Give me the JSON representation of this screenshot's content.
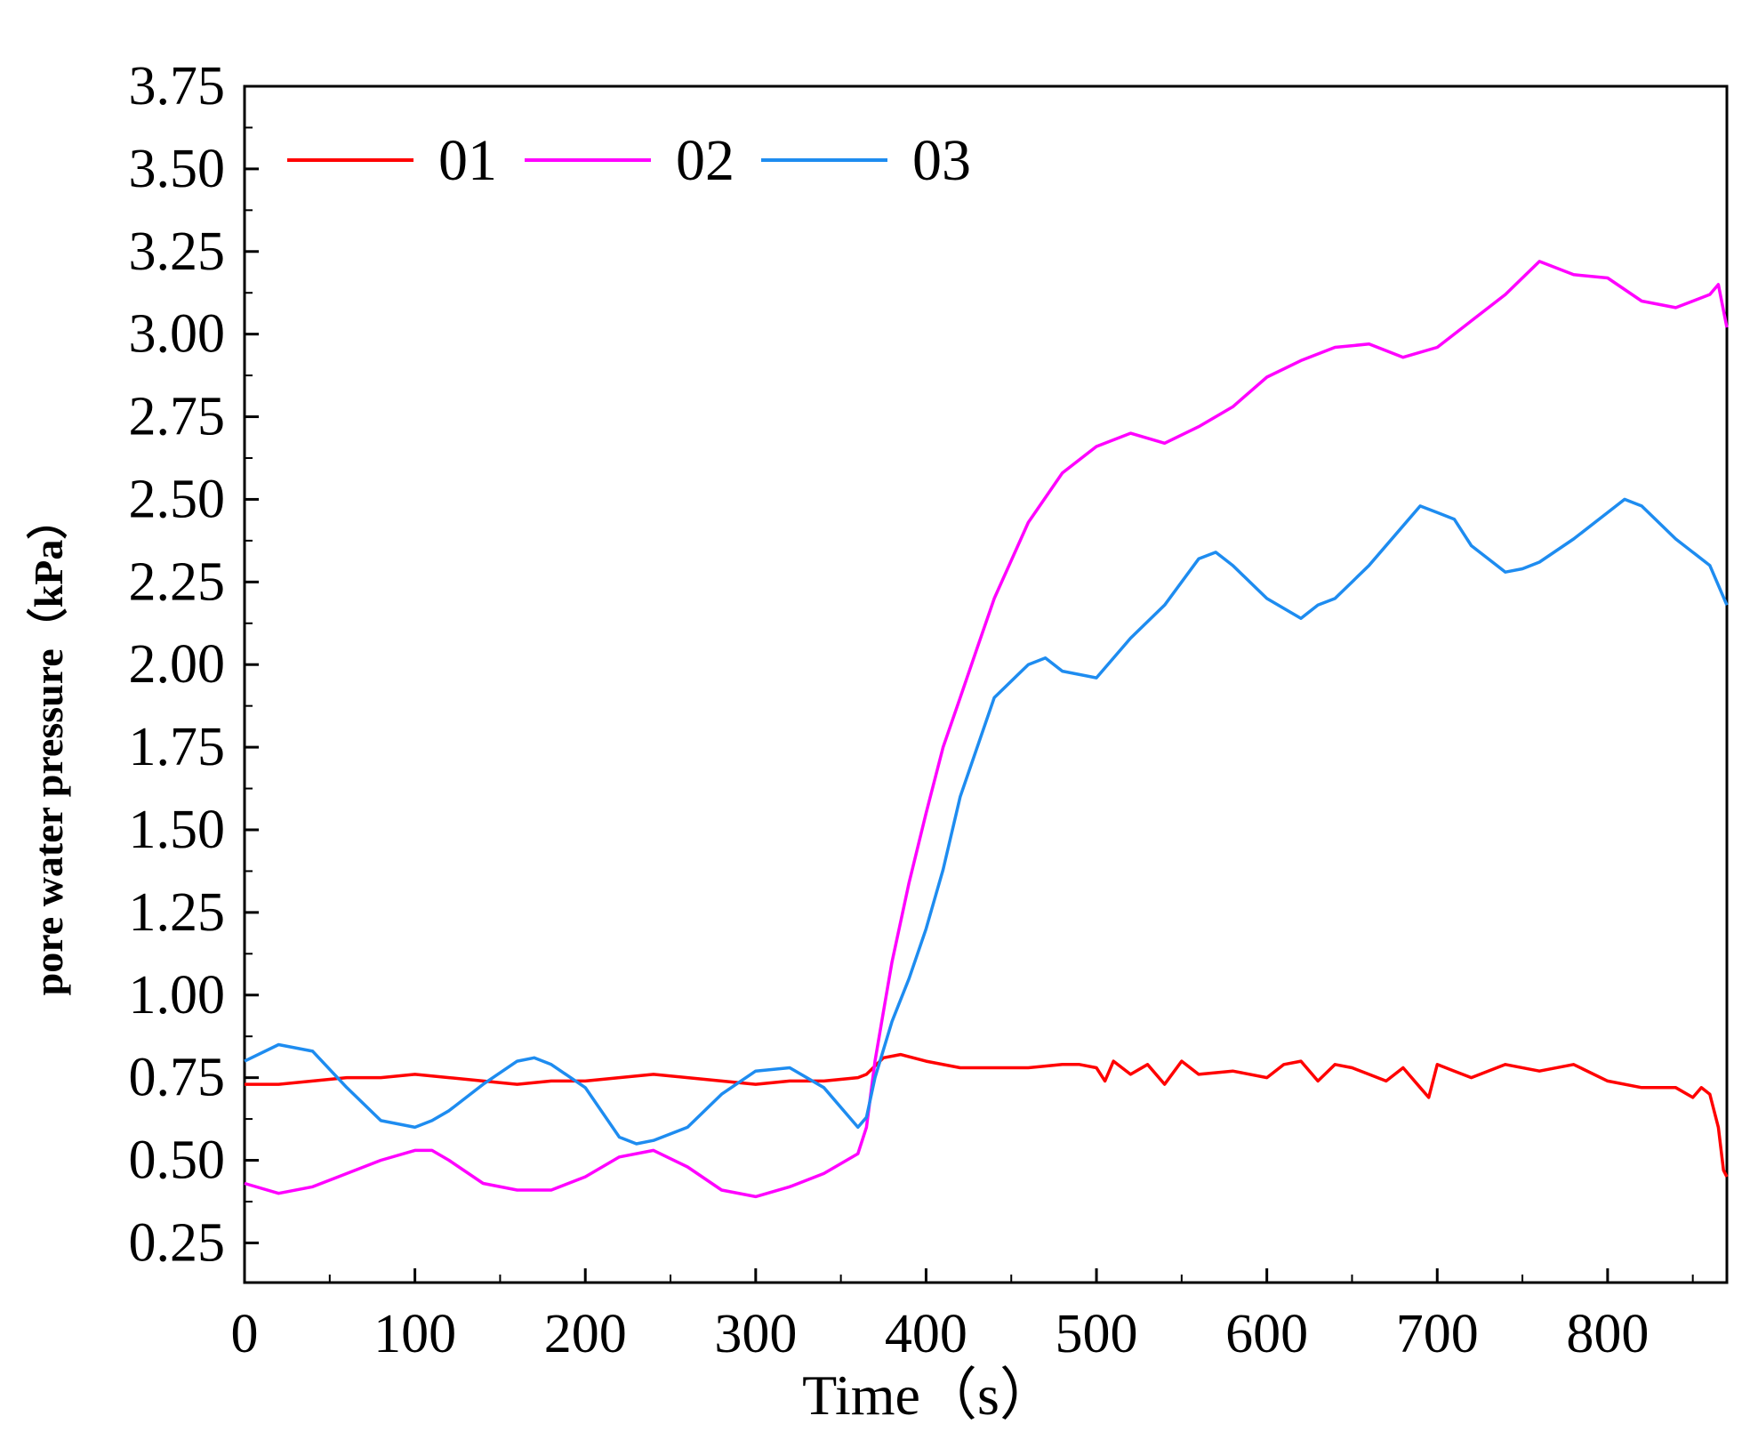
{
  "chart_data": {
    "type": "line",
    "title": "",
    "xlabel": "Time（s）",
    "ylabel": "pore water pressure（kPa）",
    "xlim": [
      0,
      870
    ],
    "ylim": [
      0.13,
      3.75
    ],
    "xticks": [
      0,
      100,
      200,
      300,
      400,
      500,
      600,
      700,
      800
    ],
    "yticks": [
      0.25,
      0.5,
      0.75,
      1.0,
      1.25,
      1.5,
      1.75,
      2.0,
      2.25,
      2.5,
      2.75,
      3.0,
      3.25,
      3.5,
      3.75
    ],
    "ytick_labels": [
      "0.25",
      "0.50",
      "0.75",
      "1.00",
      "1.25",
      "1.50",
      "1.75",
      "2.00",
      "2.25",
      "2.50",
      "2.75",
      "3.00",
      "3.25",
      "3.50",
      "3.75"
    ],
    "xtick_labels": [
      "0",
      "100",
      "200",
      "300",
      "400",
      "500",
      "600",
      "700",
      "800"
    ],
    "grid": false,
    "legend_position": "top-left",
    "series": [
      {
        "name": "01",
        "color": "#ff0000",
        "x": [
          0,
          20,
          40,
          60,
          80,
          100,
          120,
          140,
          160,
          180,
          200,
          220,
          240,
          260,
          280,
          300,
          320,
          340,
          360,
          365,
          375,
          385,
          400,
          420,
          440,
          460,
          480,
          490,
          500,
          505,
          510,
          520,
          530,
          540,
          550,
          560,
          580,
          600,
          610,
          620,
          630,
          640,
          650,
          660,
          670,
          680,
          690,
          695,
          700,
          710,
          720,
          740,
          760,
          780,
          800,
          820,
          840,
          850,
          855,
          860,
          865,
          868,
          870
        ],
        "y": [
          0.73,
          0.73,
          0.74,
          0.75,
          0.75,
          0.76,
          0.75,
          0.74,
          0.73,
          0.74,
          0.74,
          0.75,
          0.76,
          0.75,
          0.74,
          0.73,
          0.74,
          0.74,
          0.75,
          0.76,
          0.81,
          0.82,
          0.8,
          0.78,
          0.78,
          0.78,
          0.79,
          0.79,
          0.78,
          0.74,
          0.8,
          0.76,
          0.79,
          0.73,
          0.8,
          0.76,
          0.77,
          0.75,
          0.79,
          0.8,
          0.74,
          0.79,
          0.78,
          0.76,
          0.74,
          0.78,
          0.72,
          0.69,
          0.79,
          0.77,
          0.75,
          0.79,
          0.77,
          0.79,
          0.74,
          0.72,
          0.72,
          0.69,
          0.72,
          0.7,
          0.6,
          0.47,
          0.45
        ]
      },
      {
        "name": "02",
        "color": "#ff00ff",
        "x": [
          0,
          20,
          40,
          60,
          80,
          100,
          110,
          120,
          140,
          160,
          180,
          200,
          220,
          240,
          260,
          280,
          300,
          320,
          340,
          360,
          365,
          370,
          375,
          380,
          390,
          400,
          410,
          420,
          430,
          440,
          460,
          480,
          500,
          520,
          540,
          560,
          580,
          600,
          620,
          640,
          660,
          680,
          700,
          720,
          740,
          760,
          780,
          800,
          820,
          840,
          860,
          865,
          870
        ],
        "y": [
          0.43,
          0.4,
          0.42,
          0.46,
          0.5,
          0.53,
          0.53,
          0.5,
          0.43,
          0.41,
          0.41,
          0.45,
          0.51,
          0.53,
          0.48,
          0.41,
          0.39,
          0.42,
          0.46,
          0.52,
          0.6,
          0.8,
          0.95,
          1.1,
          1.34,
          1.55,
          1.75,
          1.9,
          2.05,
          2.2,
          2.43,
          2.58,
          2.66,
          2.7,
          2.67,
          2.72,
          2.78,
          2.87,
          2.92,
          2.96,
          2.97,
          2.93,
          2.96,
          3.04,
          3.12,
          3.22,
          3.18,
          3.17,
          3.1,
          3.08,
          3.12,
          3.15,
          3.02
        ]
      },
      {
        "name": "03",
        "color": "#1e8cf0",
        "x": [
          0,
          20,
          40,
          60,
          80,
          100,
          110,
          120,
          140,
          160,
          170,
          180,
          200,
          220,
          230,
          240,
          260,
          280,
          300,
          320,
          340,
          360,
          365,
          370,
          380,
          390,
          400,
          410,
          420,
          440,
          460,
          470,
          480,
          500,
          520,
          540,
          560,
          570,
          580,
          600,
          620,
          630,
          640,
          660,
          680,
          690,
          700,
          710,
          720,
          740,
          750,
          760,
          780,
          800,
          810,
          820,
          840,
          860,
          870
        ],
        "y": [
          0.8,
          0.85,
          0.83,
          0.72,
          0.62,
          0.6,
          0.62,
          0.65,
          0.73,
          0.8,
          0.81,
          0.79,
          0.72,
          0.57,
          0.55,
          0.56,
          0.6,
          0.7,
          0.77,
          0.78,
          0.72,
          0.6,
          0.63,
          0.75,
          0.92,
          1.05,
          1.2,
          1.38,
          1.6,
          1.9,
          2.0,
          2.02,
          1.98,
          1.96,
          2.08,
          2.18,
          2.32,
          2.34,
          2.3,
          2.2,
          2.14,
          2.18,
          2.2,
          2.3,
          2.42,
          2.48,
          2.46,
          2.44,
          2.36,
          2.28,
          2.29,
          2.31,
          2.38,
          2.46,
          2.5,
          2.48,
          2.38,
          2.3,
          2.18
        ]
      }
    ]
  }
}
